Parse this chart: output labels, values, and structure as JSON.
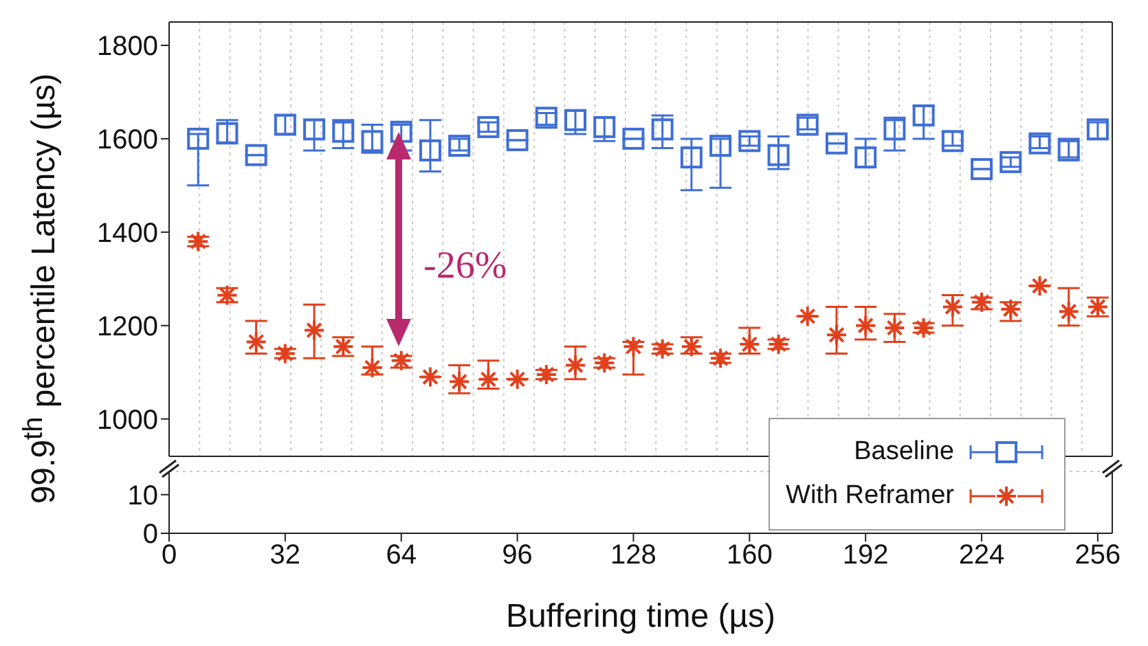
{
  "chart_data": [
    {
      "type": "scatter",
      "ylabel": "99.9$^{th}$ percentile Latency (µs)",
      "x": [
        8,
        16,
        24,
        32,
        40,
        48,
        56,
        64,
        72,
        80,
        88,
        96,
        104,
        112,
        120,
        128,
        136,
        144,
        152,
        160,
        168,
        176,
        184,
        192,
        200,
        208,
        216,
        224,
        232,
        240,
        248,
        256
      ],
      "xlim": [
        0,
        260
      ],
      "xticks": [
        0,
        32,
        64,
        96,
        128,
        160,
        192,
        224,
        256
      ],
      "ylim": [
        920,
        1850
      ],
      "yticks": [
        1000,
        1200,
        1400,
        1600,
        1800
      ],
      "tick_labels": "y",
      "grid": true,
      "legend": "bottom right",
      "annotations": [
        "-26%"
      ],
      "series": [
        {
          "name": "Baseline",
          "color": "#3f6fd6",
          "marker": "square",
          "values": [
            1600,
            1612,
            1565,
            1630,
            1620,
            1615,
            1595,
            1615,
            1575,
            1585,
            1625,
            1597,
            1645,
            1640,
            1625,
            1600,
            1620,
            1560,
            1585,
            1595,
            1565,
            1630,
            1590,
            1560,
            1620,
            1650,
            1595,
            1535,
            1550,
            1590,
            1575,
            1620
          ],
          "errors": [
            [
              1500,
              1610
            ],
            [
              1590,
              1640
            ],
            null,
            [
              1610,
              1650
            ],
            [
              1575,
              1640
            ],
            [
              1580,
              1640
            ],
            [
              1570,
              1630
            ],
            [
              1575,
              1630
            ],
            [
              1530,
              1640
            ],
            [
              1575,
              1600
            ],
            [
              1615,
              1635
            ],
            null,
            [
              1630,
              1655
            ],
            [
              1610,
              1660
            ],
            [
              1595,
              1645
            ],
            null,
            [
              1580,
              1650
            ],
            [
              1490,
              1600
            ],
            [
              1495,
              1600
            ],
            [
              1585,
              1605
            ],
            [
              1535,
              1605
            ],
            [
              1620,
              1645
            ],
            null,
            [
              1540,
              1600
            ],
            [
              1575,
              1645
            ],
            [
              1600,
              1670
            ],
            [
              1585,
              1615
            ],
            null,
            [
              1540,
              1560
            ],
            [
              1580,
              1605
            ],
            [
              1560,
              1600
            ],
            [
              1600,
              1635
            ]
          ]
        },
        {
          "name": "With Reframer",
          "color": "#e2401c",
          "marker": "cross",
          "values": [
            1380,
            1265,
            1165,
            1140,
            1190,
            1155,
            1110,
            1125,
            1090,
            1080,
            1085,
            1085,
            1095,
            1115,
            1120,
            1155,
            1150,
            1155,
            1130,
            1160,
            1160,
            1220,
            1180,
            1200,
            1195,
            1195,
            1240,
            1250,
            1235,
            1285,
            1230,
            1240
          ],
          "errors": [
            [
              1370,
              1390
            ],
            [
              1250,
              1280
            ],
            [
              1140,
              1210
            ],
            [
              1130,
              1150
            ],
            [
              1130,
              1245
            ],
            [
              1135,
              1175
            ],
            [
              1095,
              1155
            ],
            [
              1110,
              1135
            ],
            null,
            [
              1055,
              1115
            ],
            [
              1065,
              1125
            ],
            null,
            [
              1085,
              1105
            ],
            [
              1085,
              1155
            ],
            [
              1110,
              1130
            ],
            [
              1095,
              1165
            ],
            [
              1140,
              1160
            ],
            [
              1140,
              1175
            ],
            [
              1120,
              1140
            ],
            [
              1140,
              1195
            ],
            [
              1150,
              1170
            ],
            null,
            [
              1140,
              1240
            ],
            [
              1170,
              1240
            ],
            [
              1165,
              1225
            ],
            [
              1185,
              1205
            ],
            [
              1200,
              1265
            ],
            [
              1235,
              1260
            ],
            [
              1210,
              1250
            ],
            null,
            [
              1200,
              1280
            ],
            [
              1220,
              1260
            ]
          ]
        }
      ]
    },
    {
      "type": "scatter",
      "xlabel": "Buffering time (µs)",
      "xlim": [
        0,
        260
      ],
      "xticks": [
        0,
        32,
        64,
        96,
        128,
        160,
        192,
        224,
        256
      ],
      "ylim": [
        0,
        16
      ],
      "yticks": [
        0,
        10
      ],
      "grid": true
    }
  ]
}
